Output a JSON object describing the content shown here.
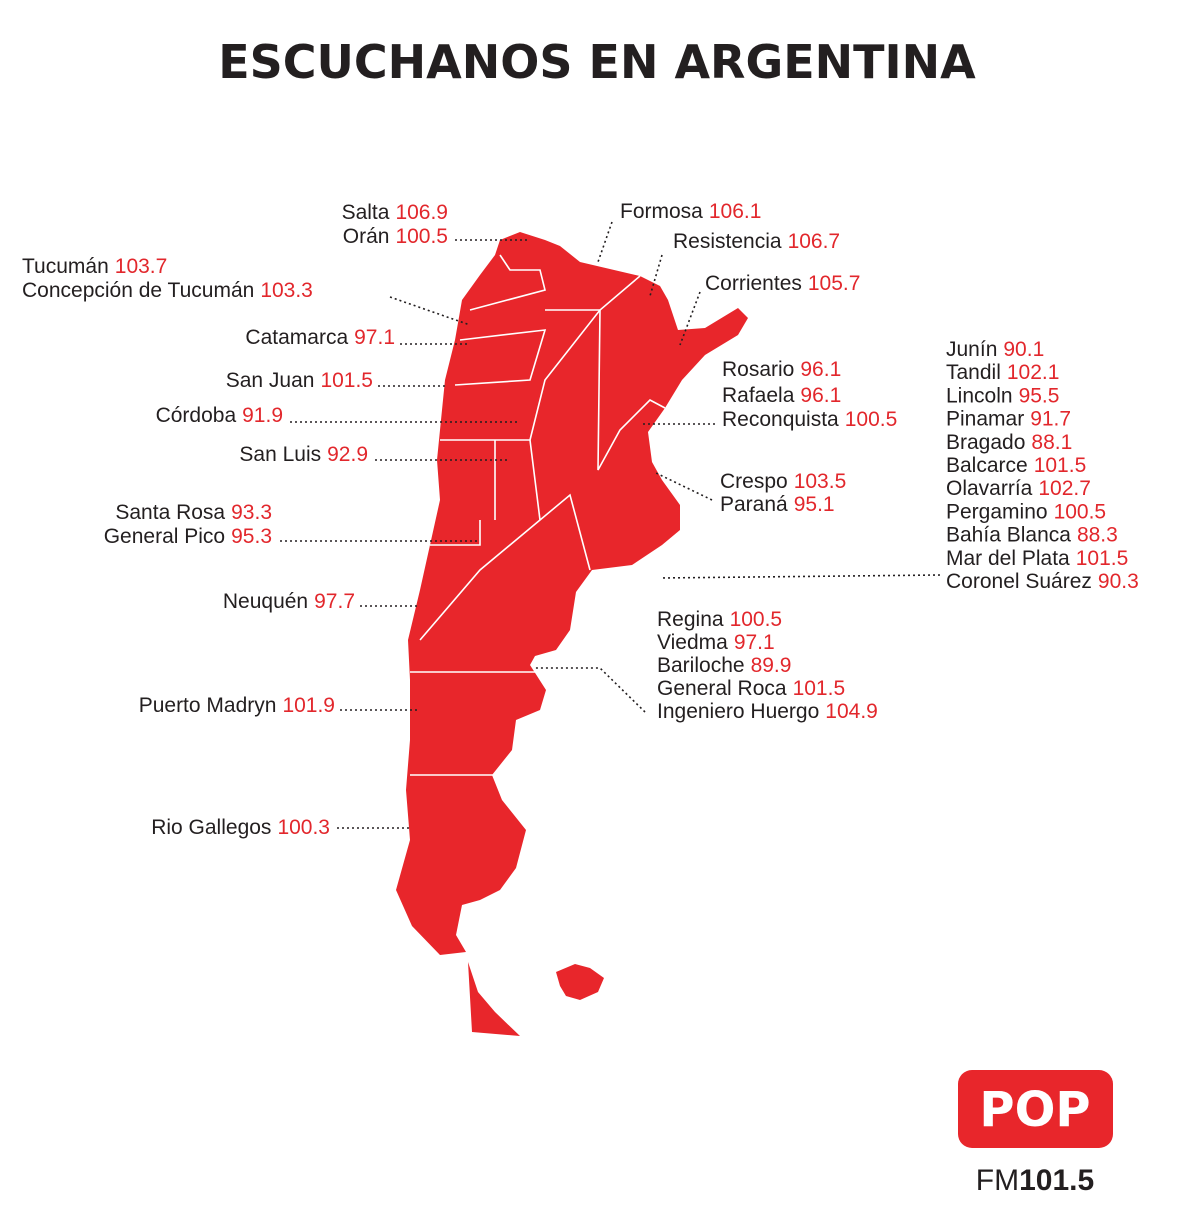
{
  "header": {
    "title": "ESCUCHANOS EN ARGENTINA"
  },
  "stations": [
    {
      "city": "Salta",
      "frequency": "106.9"
    },
    {
      "city": "Orán",
      "frequency": "100.5"
    },
    {
      "city": "Tucumán",
      "frequency": "103.7"
    },
    {
      "city": "Concepción de Tucumán",
      "frequency": "103.3"
    },
    {
      "city": "Catamarca",
      "frequency": "97.1"
    },
    {
      "city": "San Juan",
      "frequency": "101.5"
    },
    {
      "city": "Córdoba",
      "frequency": "91.9"
    },
    {
      "city": "San Luis",
      "frequency": "92.9"
    },
    {
      "city": "Santa Rosa",
      "frequency": "93.3"
    },
    {
      "city": "General Pico",
      "frequency": "95.3"
    },
    {
      "city": "Neuquén",
      "frequency": "97.7"
    },
    {
      "city": "Puerto Madryn",
      "frequency": "101.9"
    },
    {
      "city": "Rio Gallegos",
      "frequency": "100.3"
    },
    {
      "city": "Formosa",
      "frequency": "106.1"
    },
    {
      "city": "Resistencia",
      "frequency": "106.7"
    },
    {
      "city": "Corrientes",
      "frequency": "105.7"
    },
    {
      "city": "Rosario",
      "frequency": "96.1"
    },
    {
      "city": "Rafaela",
      "frequency": "96.1"
    },
    {
      "city": "Reconquista",
      "frequency": "100.5"
    },
    {
      "city": "Crespo",
      "frequency": "103.5"
    },
    {
      "city": "Paraná",
      "frequency": "95.1"
    },
    {
      "city": "Junín",
      "frequency": "90.1"
    },
    {
      "city": "Tandil",
      "frequency": "102.1"
    },
    {
      "city": "Lincoln",
      "frequency": "95.5"
    },
    {
      "city": "Pinamar",
      "frequency": "91.7"
    },
    {
      "city": "Bragado",
      "frequency": "88.1"
    },
    {
      "city": "Balcarce",
      "frequency": "101.5"
    },
    {
      "city": "Olavarría",
      "frequency": "102.7"
    },
    {
      "city": "Pergamino",
      "frequency": "100.5"
    },
    {
      "city": "Bahía Blanca",
      "frequency": "88.3"
    },
    {
      "city": "Mar del Plata",
      "frequency": "101.5"
    },
    {
      "city": "Coronel Suárez",
      "frequency": "90.3"
    },
    {
      "city": "Regina",
      "frequency": "100.5"
    },
    {
      "city": "Viedma",
      "frequency": "97.1"
    },
    {
      "city": "Bariloche",
      "frequency": "89.9"
    },
    {
      "city": "General Roca",
      "frequency": "101.5"
    },
    {
      "city": "Ingeniero Huergo",
      "frequency": "104.9"
    }
  ],
  "logo": {
    "brand": "POP",
    "band": "FM",
    "frequency": "101.5"
  }
}
